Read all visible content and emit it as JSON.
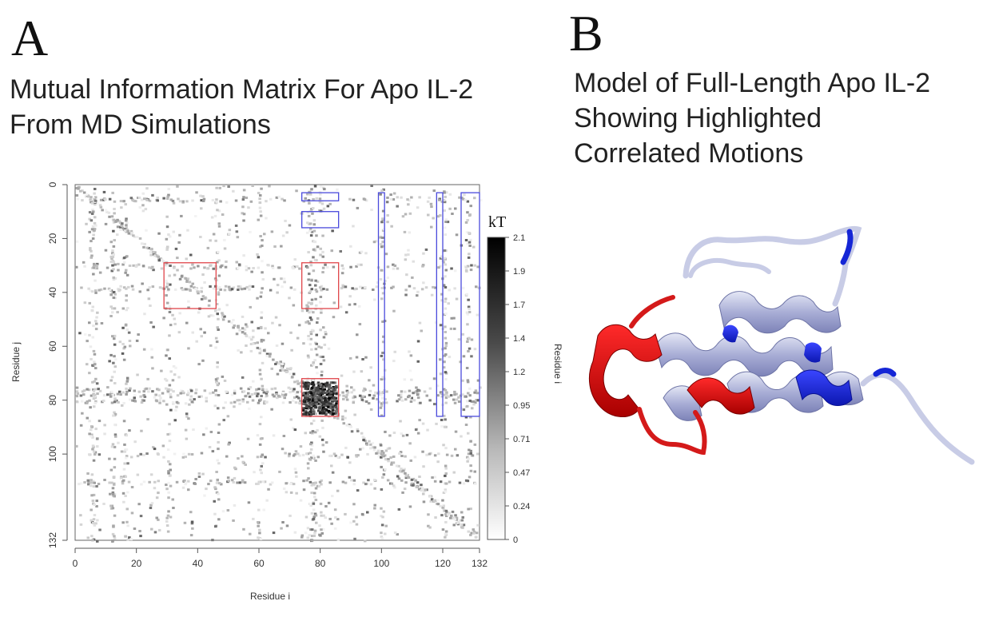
{
  "panel_a": {
    "letter": "A",
    "title_line1": "Mutual Information Matrix For Apo IL-2",
    "title_line2": "From MD Simulations"
  },
  "panel_b": {
    "letter": "B",
    "title_line1": "Model of Full-Length Apo IL-2",
    "title_line2": "Showing Highlighted",
    "title_line3": "Correlated Motions"
  },
  "chart_data": {
    "type": "heatmap",
    "title": "Mutual Information Matrix For Apo IL-2 From MD Simulations",
    "xlabel": "Residue i",
    "ylabel": "Residue j",
    "xlim": [
      0,
      132
    ],
    "ylim": [
      0,
      132
    ],
    "x_ticks": [
      0,
      20,
      40,
      60,
      80,
      100,
      120,
      132
    ],
    "y_ticks": [
      0,
      20,
      40,
      60,
      80,
      100,
      132
    ],
    "colorbar": {
      "unit_label": "kT",
      "side_label": "Residue i",
      "ticks": [
        "2.1",
        "1.9",
        "1.7",
        "1.4",
        "1.2",
        "0.95",
        "0.71",
        "0.47",
        "0.24",
        "0"
      ],
      "low_color": "#ffffff",
      "high_color": "#000000"
    },
    "highlight_boxes": [
      {
        "color": "red",
        "x": [
          29,
          46
        ],
        "y": [
          29,
          46
        ]
      },
      {
        "color": "red",
        "x": [
          74,
          86
        ],
        "y": [
          29,
          46
        ]
      },
      {
        "color": "red",
        "x": [
          74,
          86
        ],
        "y": [
          72,
          86
        ]
      },
      {
        "color": "blue",
        "x": [
          74,
          86
        ],
        "y": [
          3,
          6
        ]
      },
      {
        "color": "blue",
        "x": [
          74,
          86
        ],
        "y": [
          10,
          16
        ]
      },
      {
        "color": "blue",
        "x": [
          99,
          101
        ],
        "y": [
          3,
          86
        ]
      },
      {
        "color": "blue",
        "x": [
          118,
          120
        ],
        "y": [
          3,
          86
        ]
      },
      {
        "color": "blue",
        "x": [
          126,
          132
        ],
        "y": [
          3,
          86
        ]
      }
    ],
    "colors": {
      "red_box": "#e0454a",
      "blue_box": "#4a4adc"
    }
  }
}
